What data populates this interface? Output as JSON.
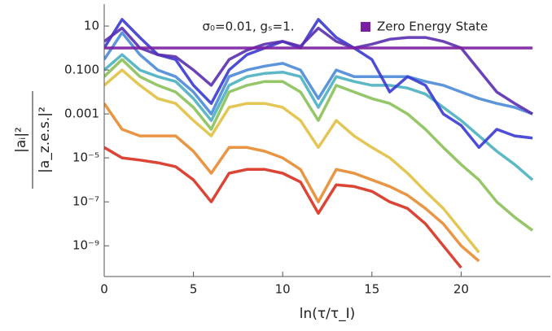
{
  "chart_data": {
    "type": "line",
    "annotation": "σ₀=0.01, gₛ=1.",
    "x_label": "ln(τ/τ_I)",
    "y_label_numerator": "|aᵢ|²",
    "y_label_denominator": "|a_z.e.s.|²",
    "log_y": true,
    "xlim": [
      0,
      25
    ],
    "xticks": [
      0,
      5,
      10,
      15,
      20
    ],
    "ylim": [
      4e-11,
      100
    ],
    "yticks": [
      10,
      {
        "value": 0.1,
        "label": "0.100"
      },
      0.001,
      {
        "value": 1e-05,
        "label": "10⁻⁵"
      },
      {
        "value": 1e-07,
        "label": "10⁻⁷"
      },
      {
        "value": 1e-09,
        "label": "10⁻⁹"
      }
    ],
    "legend_position": "top-right",
    "x": [
      0,
      1,
      2,
      3,
      4,
      5,
      6,
      7,
      8,
      9,
      10,
      11,
      12,
      13,
      14,
      15,
      16,
      17,
      18,
      19,
      20,
      21,
      22,
      23,
      24
    ],
    "series": [
      {
        "name": "Zero Energy State",
        "color": "#7b1fa2",
        "values": [
          1,
          1,
          1,
          1,
          1,
          1,
          1,
          1,
          1,
          1,
          1,
          1,
          1,
          1,
          1,
          1,
          1,
          1,
          1,
          1,
          1,
          1,
          1,
          1,
          1
        ]
      },
      {
        "color": "#5b2fb0",
        "values": [
          2,
          8,
          1,
          0.5,
          0.4,
          0.1,
          0.02,
          0.3,
          0.8,
          1.5,
          2,
          1.2,
          8,
          2,
          1,
          1.5,
          2.5,
          3,
          3,
          2,
          1,
          0.1,
          0.01,
          0.003,
          0.001
        ]
      },
      {
        "color": "#3a3ad0",
        "values": [
          1,
          20,
          3,
          0.5,
          0.3,
          0.02,
          0.003,
          0.1,
          0.5,
          1,
          2,
          1,
          20,
          3,
          1,
          0.3,
          0.01,
          0.05,
          0.02,
          0.001,
          0.0003,
          3e-05,
          0.0002,
          0.0001,
          8e-05
        ]
      },
      {
        "color": "#4a8ad8",
        "values": [
          0.3,
          5,
          0.5,
          0.1,
          0.05,
          0.01,
          0.001,
          0.05,
          0.1,
          0.15,
          0.2,
          0.1,
          0.005,
          0.1,
          0.05,
          0.05,
          0.05,
          0.05,
          0.03,
          0.02,
          0.01,
          0.005,
          0.003,
          0.002,
          0.001
        ]
      },
      {
        "color": "#4ab0c0",
        "values": [
          0.1,
          0.5,
          0.1,
          0.05,
          0.03,
          0.005,
          0.0005,
          0.02,
          0.05,
          0.07,
          0.08,
          0.05,
          0.002,
          0.05,
          0.03,
          0.02,
          0.02,
          0.015,
          0.008,
          0.002,
          0.0005,
          0.0001,
          2e-05,
          5e-06,
          1e-06
        ]
      },
      {
        "color": "#8ac058",
        "values": [
          0.05,
          0.3,
          0.05,
          0.02,
          0.01,
          0.002,
          0.0002,
          0.01,
          0.02,
          0.03,
          0.03,
          0.01,
          0.0005,
          0.02,
          0.01,
          0.005,
          0.003,
          0.001,
          0.0002,
          3e-05,
          5e-06,
          1e-06,
          1e-07,
          2e-08,
          5e-09
        ]
      },
      {
        "color": "#e0c040",
        "values": [
          0.02,
          0.1,
          0.02,
          0.005,
          0.003,
          0.0005,
          0.0001,
          0.002,
          0.003,
          0.003,
          0.002,
          0.0005,
          3e-05,
          0.0005,
          0.0001,
          3e-05,
          1e-05,
          2e-06,
          3e-07,
          5e-08,
          5e-09,
          5e-10,
          null,
          null,
          null
        ]
      },
      {
        "color": "#e88a30",
        "values": [
          0.003,
          0.0002,
          0.0001,
          0.0001,
          0.0001,
          2e-05,
          2e-06,
          3e-05,
          3e-05,
          2e-05,
          1e-05,
          3e-06,
          1e-07,
          3e-06,
          2e-06,
          1e-06,
          5e-07,
          2e-07,
          5e-08,
          1e-08,
          1e-09,
          2e-10,
          null,
          null,
          null
        ]
      },
      {
        "color": "#d83020",
        "values": [
          3e-05,
          1e-05,
          8e-06,
          6e-06,
          4e-06,
          1e-06,
          1e-07,
          2e-06,
          3e-06,
          3e-06,
          2e-06,
          8e-07,
          3e-08,
          6e-07,
          5e-07,
          3e-07,
          1e-07,
          5e-08,
          1e-08,
          1e-09,
          1e-10,
          null,
          null,
          null,
          null
        ]
      }
    ]
  }
}
